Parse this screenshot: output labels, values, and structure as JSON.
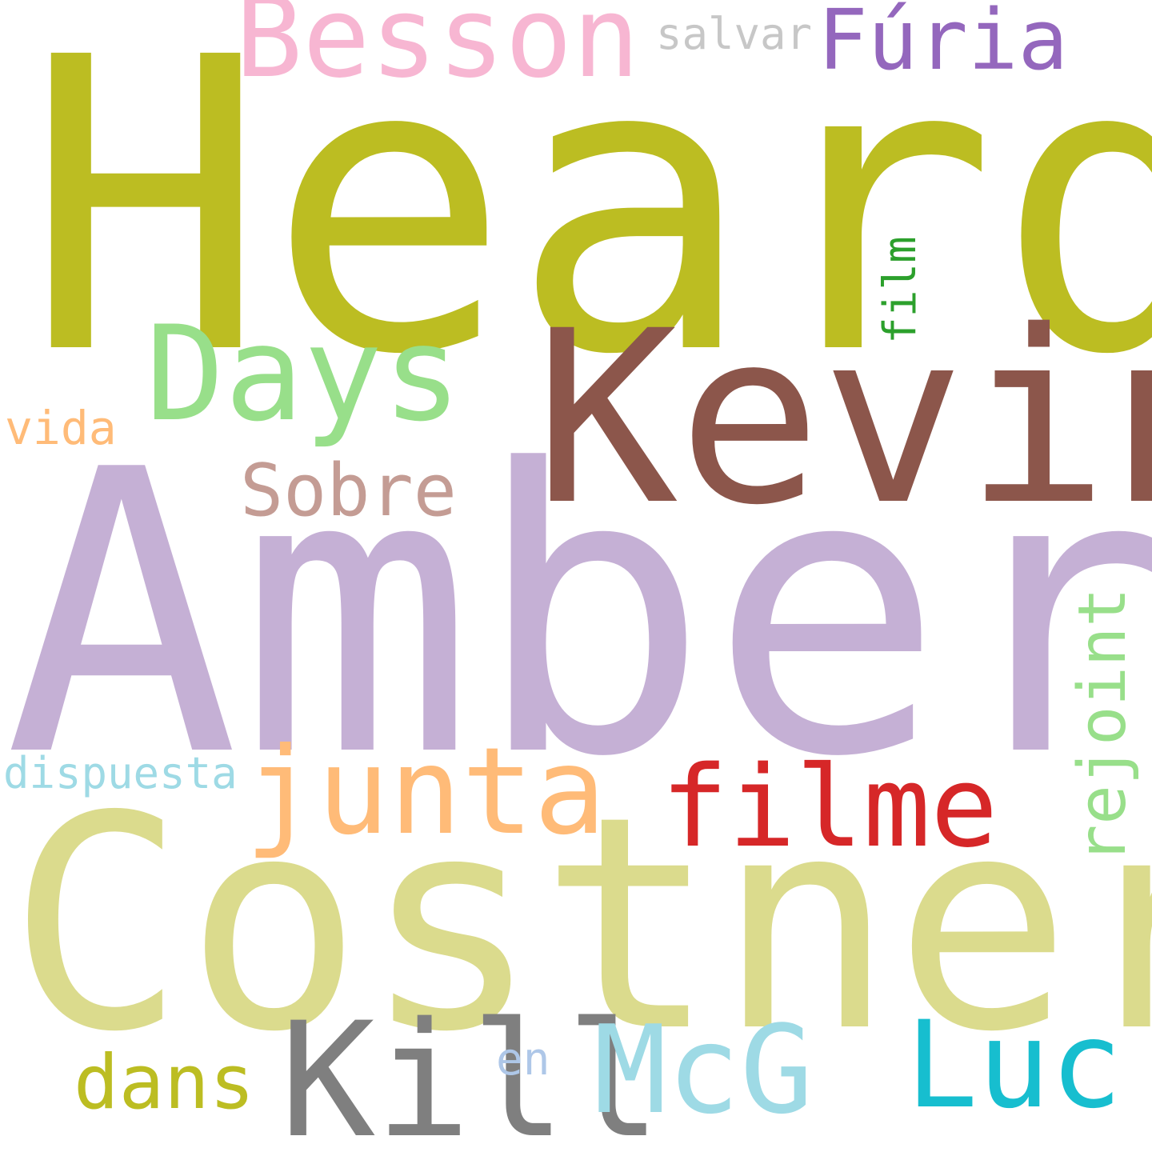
{
  "background_color": "#ffffff",
  "words": {
    "heard": {
      "text": "Heard",
      "color": "#bcbd22"
    },
    "kevin": {
      "text": "Kevin",
      "color": "#8c564b"
    },
    "amber": {
      "text": "Amber",
      "color": "#c5b0d5"
    },
    "costner": {
      "text": "Costner",
      "color": "#dbdb8d"
    },
    "besson": {
      "text": "Besson",
      "color": "#f7b6d2"
    },
    "salvar": {
      "text": "salvar",
      "color": "#c7c7c7"
    },
    "furia": {
      "text": "Fúria",
      "color": "#9467bd"
    },
    "days": {
      "text": "Days",
      "color": "#98df8a"
    },
    "film": {
      "text": "film",
      "color": "#2ca02c",
      "orientation": "vertical"
    },
    "vida": {
      "text": "vida",
      "color": "#ffbb78"
    },
    "sobre": {
      "text": "Sobre",
      "color": "#c49c94"
    },
    "rejoint": {
      "text": "rejoint",
      "color": "#98df8a",
      "orientation": "vertical"
    },
    "dispuesta": {
      "text": "dispuesta",
      "color": "#9edae5"
    },
    "junta": {
      "text": "junta",
      "color": "#ffbb78"
    },
    "filme": {
      "text": "filme",
      "color": "#d62728"
    },
    "kill": {
      "text": "Kill",
      "color": "#7f7f7f"
    },
    "mcg": {
      "text": "McG",
      "color": "#9edae5"
    },
    "luc": {
      "text": "Luc",
      "color": "#17becf"
    },
    "dans": {
      "text": "dans",
      "color": "#bcbd22"
    },
    "en": {
      "text": "en",
      "color": "#aec7e8"
    }
  }
}
